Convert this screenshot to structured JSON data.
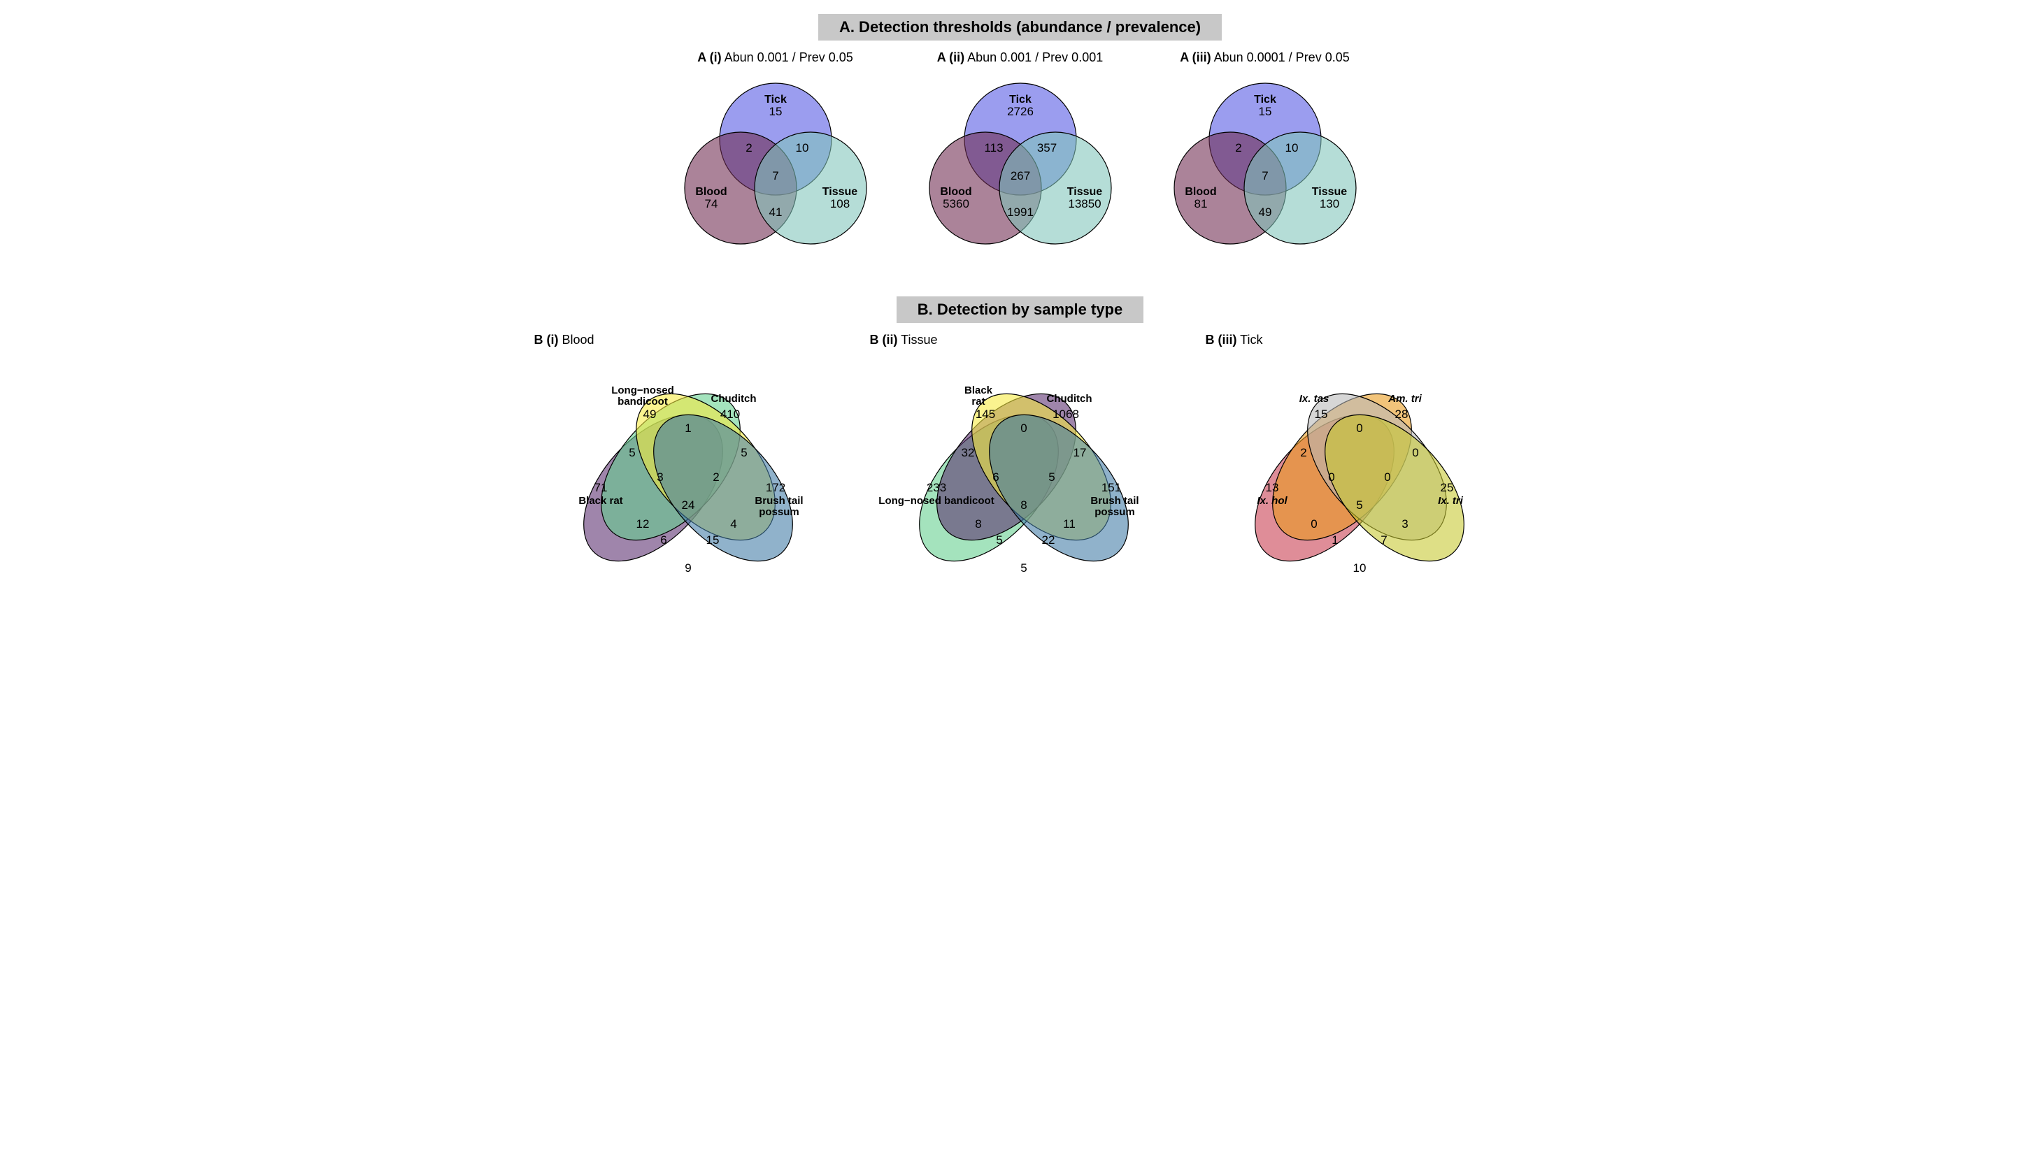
{
  "sectionA": {
    "title": "A. Detection thresholds (abundance / prevalence)",
    "panels": [
      {
        "id": "A(i)",
        "subtitle_bold": "A (i)",
        "subtitle_rest": "  Abun 0.001 /  Prev 0.05",
        "labels": {
          "tick": "Tick",
          "blood": "Blood",
          "tissue": "Tissue"
        },
        "colors": {
          "tick": "#5257e3",
          "blood": "#6e2a4f",
          "tissue": "#7fc4ba"
        },
        "vals": {
          "tick": "15",
          "blood": "74",
          "tissue": "108",
          "tb": "2",
          "tt": "10",
          "bt": "41",
          "all": "7"
        }
      },
      {
        "id": "A(ii)",
        "subtitle_bold": "A (ii)",
        "subtitle_rest": "  Abun 0.001 /  Prev 0.001",
        "labels": {
          "tick": "Tick",
          "blood": "Blood",
          "tissue": "Tissue"
        },
        "colors": {
          "tick": "#5257e3",
          "blood": "#6e2a4f",
          "tissue": "#7fc4ba"
        },
        "vals": {
          "tick": "2726",
          "blood": "5360",
          "tissue": "13850",
          "tb": "113",
          "tt": "357",
          "bt": "1991",
          "all": "267"
        }
      },
      {
        "id": "A(iii)",
        "subtitle_bold": "A (iii)",
        "subtitle_rest": "  Abun 0.0001 /  Prev 0.05",
        "labels": {
          "tick": "Tick",
          "blood": "Blood",
          "tissue": "Tissue"
        },
        "colors": {
          "tick": "#5257e3",
          "blood": "#6e2a4f",
          "tissue": "#7fc4ba"
        },
        "vals": {
          "tick": "15",
          "blood": "81",
          "tissue": "130",
          "tb": "2",
          "tt": "10",
          "bt": "49",
          "all": "7"
        }
      }
    ]
  },
  "sectionB": {
    "title": "B. Detection by sample type",
    "panels": [
      {
        "id": "B(i)",
        "title_bold": "B (i)",
        "title_rest": " Blood",
        "sets": [
          {
            "name": "Black rat",
            "color": "#5a2d6f",
            "only": "71"
          },
          {
            "name": "Long−nosed bandicoot",
            "color": "#62cf8e",
            "only": "49"
          },
          {
            "name": "Chuditch",
            "color": "#f7ea3e",
            "only": "410"
          },
          {
            "name": "Brush tail possum",
            "color": "#3f7aa6",
            "only": "172"
          }
        ],
        "pairs": {
          "ab": "5",
          "bc": "1",
          "cd": "5",
          "ad": "9",
          "ac": "12",
          "bd": "4"
        },
        "triples": {
          "abc": "3",
          "bcd": "2",
          "abd": "15",
          "acd": "6"
        },
        "all": "24",
        "italic": false
      },
      {
        "id": "B(ii)",
        "title_bold": "B (ii)",
        "title_rest": " Tissue",
        "sets": [
          {
            "name": "Long−nosed bandicoot",
            "color": "#62cf8e",
            "only": "233"
          },
          {
            "name": "Black rat",
            "color": "#5a2d6f",
            "only": "145"
          },
          {
            "name": "Chuditch",
            "color": "#f7ea3e",
            "only": "1068"
          },
          {
            "name": "Brush tail possum",
            "color": "#3f7aa6",
            "only": "151"
          }
        ],
        "pairs": {
          "ab": "32",
          "bc": "0",
          "cd": "17",
          "ad": "5",
          "ac": "8",
          "bd": "11"
        },
        "triples": {
          "abc": "6",
          "bcd": "5",
          "abd": "22",
          "acd": "5"
        },
        "all": "8",
        "italic": false
      },
      {
        "id": "B(iii)",
        "title_bold": "B (iii)",
        "title_rest": " Tick",
        "sets": [
          {
            "name": "Ix. hol",
            "color": "#c83a4e",
            "only": "13"
          },
          {
            "name": "Ix. tas",
            "color": "#e99a1a",
            "only": "15"
          },
          {
            "name": "Am. tri",
            "color": "#b8b8b8",
            "only": "28"
          },
          {
            "name": "Ix. tri",
            "color": "#c6c82e",
            "only": "25"
          }
        ],
        "pairs": {
          "ab": "2",
          "bc": "0",
          "cd": "0",
          "ad": "10",
          "ac": "0",
          "bd": "3"
        },
        "triples": {
          "abc": "0",
          "bcd": "0",
          "abd": "7",
          "acd": "1"
        },
        "all": "5",
        "italic": true
      }
    ]
  },
  "style": {
    "title_fontsize": 22,
    "sub_fontsize": 18,
    "num_fontsize": 17,
    "label_fontsize": 16,
    "bg": "#ffffff",
    "titlebar": "#c8c8c8",
    "stroke": "#000000",
    "opacity": 0.58
  }
}
